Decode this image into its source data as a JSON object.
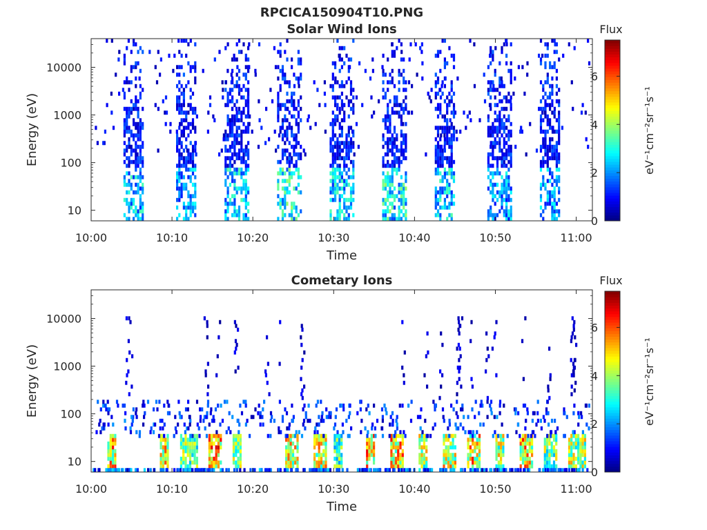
{
  "figure": {
    "title": "RPCICA150904T10.PNG"
  },
  "chart_data": [
    {
      "type": "heatmap",
      "title": "Solar Wind Ions",
      "xlabel": "Time",
      "ylabel": "Energy (eV)",
      "x_range": [
        "10:00",
        "11:02"
      ],
      "x_ticks": [
        "10:00",
        "10:10",
        "10:20",
        "10:30",
        "10:40",
        "10:50",
        "11:00"
      ],
      "y_scale": "log",
      "y_range": [
        6,
        40000
      ],
      "y_ticks": [
        "10",
        "100",
        "1000",
        "10000"
      ],
      "y_tick_values": [
        10,
        100,
        1000,
        10000
      ],
      "colorbar": {
        "title": "Flux",
        "label": "eV⁻¹cm⁻²sr⁻¹s⁻¹",
        "range": [
          0,
          7.5
        ],
        "ticks": [
          "0",
          "2",
          "4",
          "6"
        ],
        "tick_values": [
          0,
          2,
          4,
          6
        ],
        "colormap": "jet"
      },
      "bursts": [
        {
          "start": "10:04",
          "end": "10:06.5",
          "peak_flux": 3.5
        },
        {
          "start": "10:10.5",
          "end": "10:13",
          "peak_flux": 3
        },
        {
          "start": "10:16.5",
          "end": "10:19.5",
          "peak_flux": 3.5
        },
        {
          "start": "10:23",
          "end": "10:26",
          "peak_flux": 4
        },
        {
          "start": "10:29.5",
          "end": "10:32.5",
          "peak_flux": 3.5
        },
        {
          "start": "10:36",
          "end": "10:39",
          "peak_flux": 4
        },
        {
          "start": "10:42.5",
          "end": "10:45",
          "peak_flux": 3.5
        },
        {
          "start": "10:49",
          "end": "10:52",
          "peak_flux": 3
        },
        {
          "start": "10:55.5",
          "end": "10:58",
          "peak_flux": 3
        }
      ]
    },
    {
      "type": "heatmap",
      "title": "Cometary Ions",
      "xlabel": "Time",
      "ylabel": "Energy (eV)",
      "x_range": [
        "10:00",
        "11:02"
      ],
      "x_ticks": [
        "10:00",
        "10:10",
        "10:20",
        "10:30",
        "10:40",
        "10:50",
        "11:00"
      ],
      "y_scale": "log",
      "y_range": [
        6,
        40000
      ],
      "y_ticks": [
        "10",
        "100",
        "1000",
        "10000"
      ],
      "y_tick_values": [
        10,
        100,
        1000,
        10000
      ],
      "colorbar": {
        "title": "Flux",
        "label": "eV⁻¹cm⁻²sr⁻¹s⁻¹",
        "range": [
          0,
          7.5
        ],
        "ticks": [
          "0",
          "2",
          "4",
          "6"
        ],
        "tick_values": [
          0,
          2,
          4,
          6
        ],
        "colormap": "jet"
      },
      "bursts": [
        {
          "start": "10:02",
          "end": "10:03",
          "peak_flux": 6.5
        },
        {
          "start": "10:08.5",
          "end": "10:09.5",
          "peak_flux": 6.5
        },
        {
          "start": "10:11",
          "end": "10:13",
          "peak_flux": 5
        },
        {
          "start": "10:14.5",
          "end": "10:16",
          "peak_flux": 7
        },
        {
          "start": "10:17.5",
          "end": "10:18.5",
          "peak_flux": 5
        },
        {
          "start": "10:24",
          "end": "10:25.5",
          "peak_flux": 6
        },
        {
          "start": "10:27.5",
          "end": "10:29",
          "peak_flux": 6
        },
        {
          "start": "10:30",
          "end": "10:31",
          "peak_flux": 4.5
        },
        {
          "start": "10:34",
          "end": "10:35",
          "peak_flux": 7
        },
        {
          "start": "10:37",
          "end": "10:38.5",
          "peak_flux": 6.5
        },
        {
          "start": "10:40.5",
          "end": "10:41.5",
          "peak_flux": 5.5
        },
        {
          "start": "10:43.5",
          "end": "10:45",
          "peak_flux": 6
        },
        {
          "start": "10:46.5",
          "end": "10:48",
          "peak_flux": 6.5
        },
        {
          "start": "10:50",
          "end": "10:51",
          "peak_flux": 5.5
        },
        {
          "start": "10:53",
          "end": "10:54.5",
          "peak_flux": 6.5
        },
        {
          "start": "10:56",
          "end": "10:57.5",
          "peak_flux": 5
        },
        {
          "start": "10:59",
          "end": "11:01",
          "peak_flux": 5.5
        }
      ]
    }
  ]
}
